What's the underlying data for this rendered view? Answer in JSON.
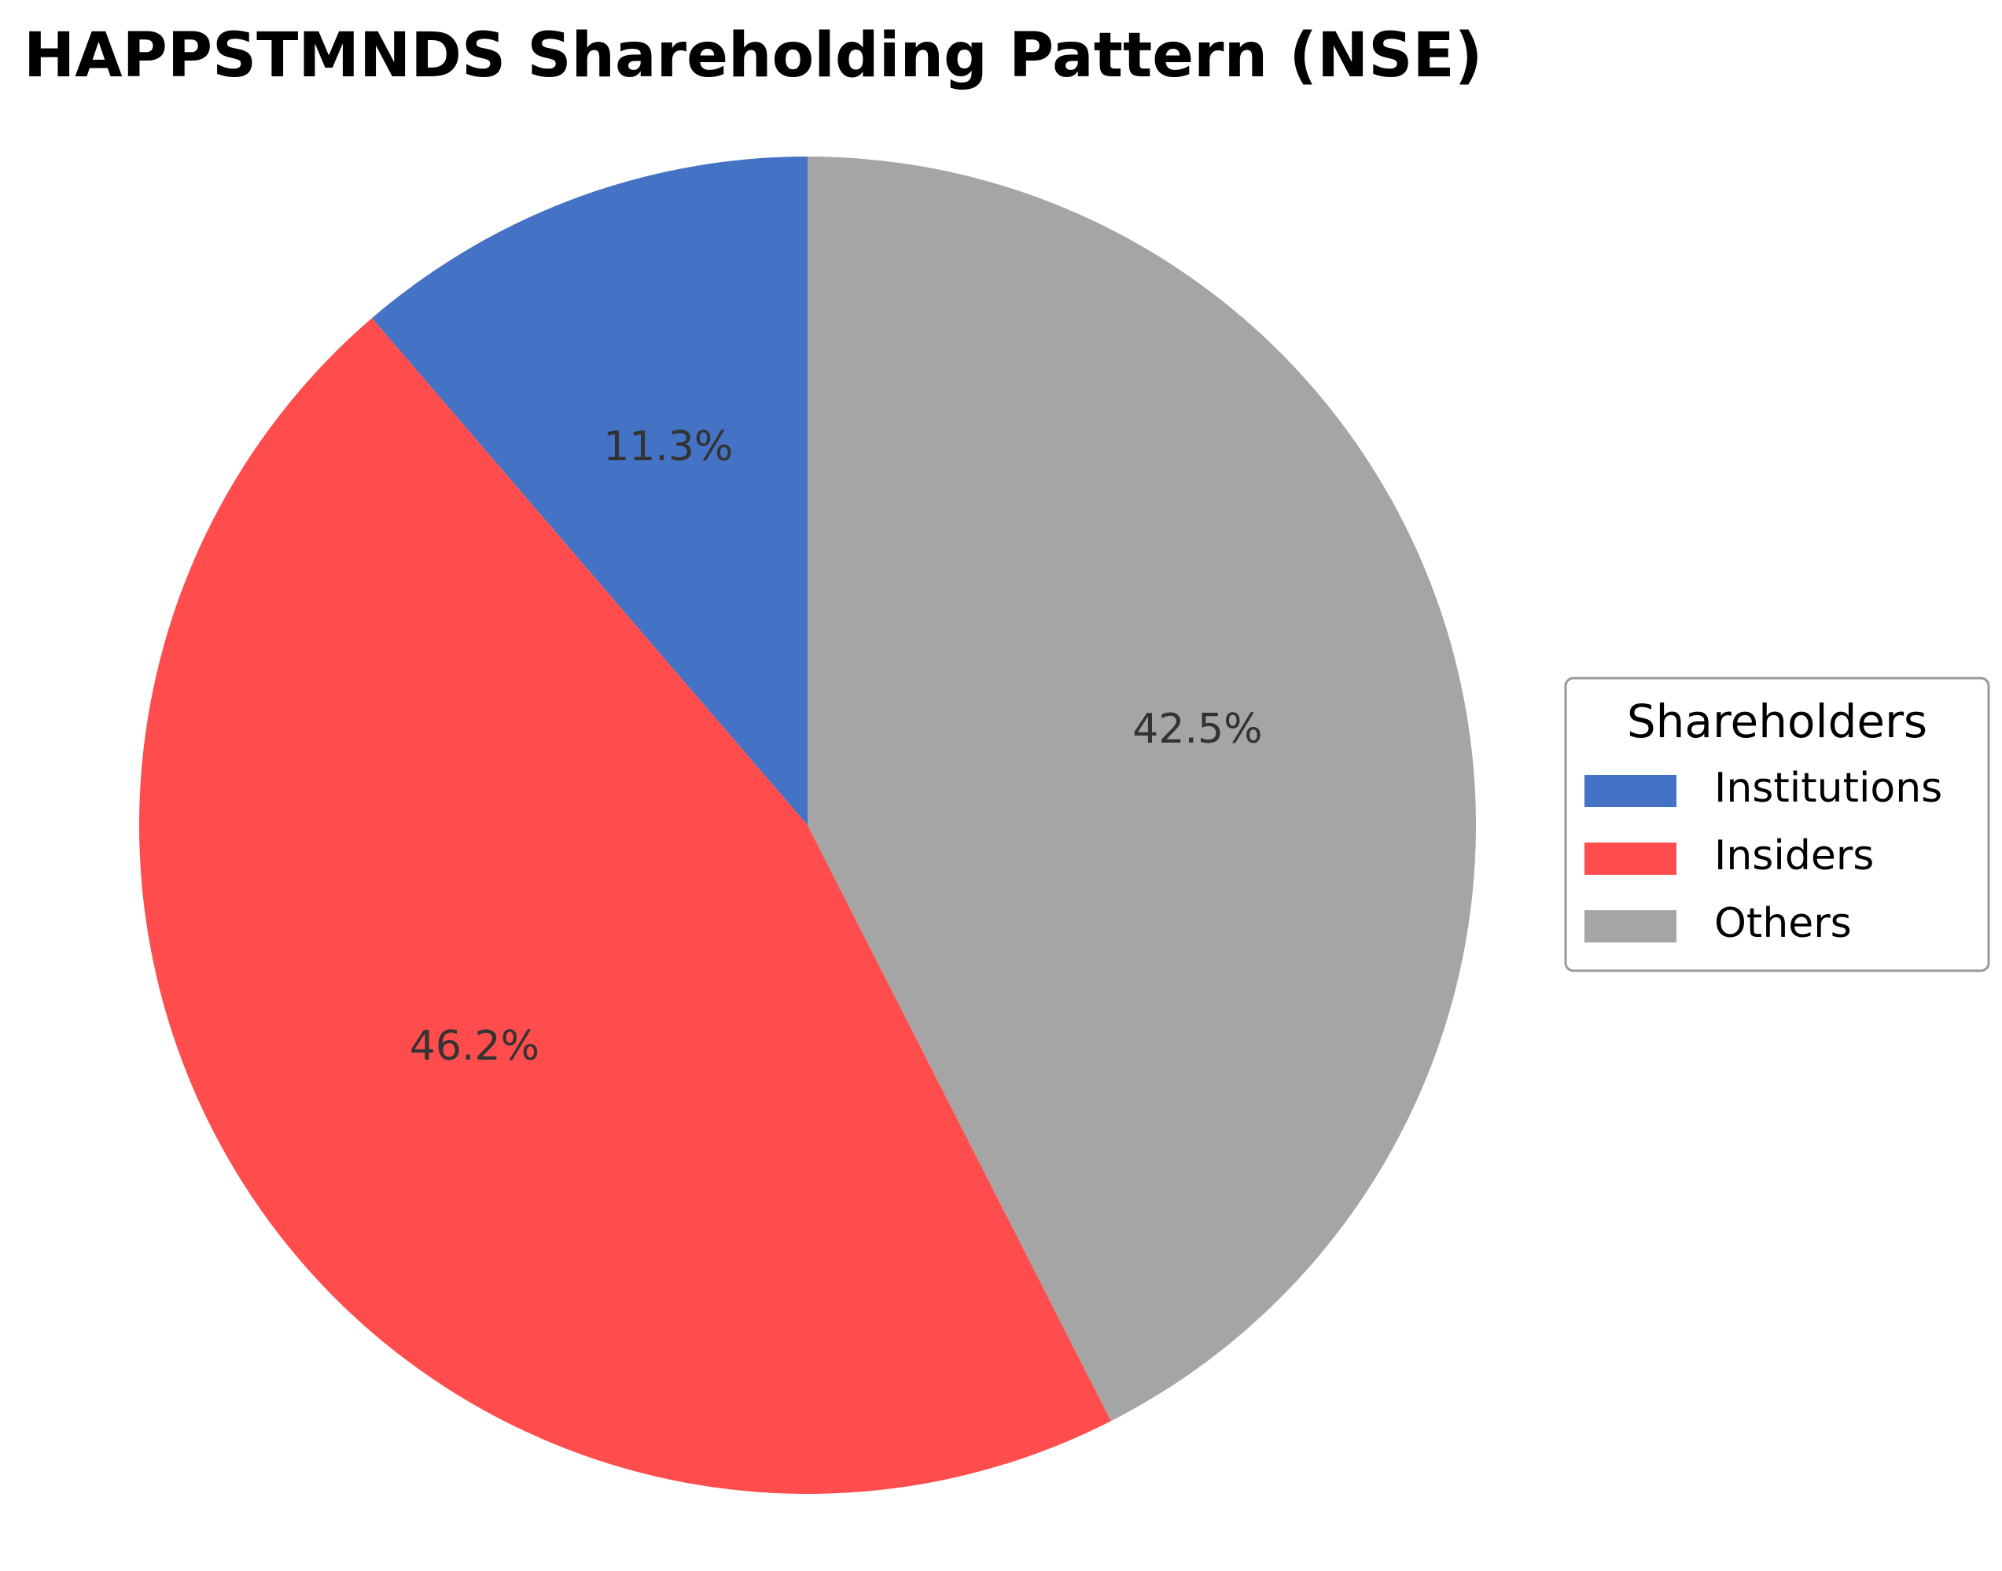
{
  "chart_data": {
    "type": "pie",
    "title": "HAPPSTMNDS Shareholding Pattern (NSE)",
    "legend": {
      "title": "Shareholders",
      "placement": "center-right"
    },
    "slices": [
      {
        "label": "Institutions",
        "value": 11.3,
        "display": "11.3%",
        "color": "#4472C4"
      },
      {
        "label": "Insiders",
        "value": 46.2,
        "display": "46.2%",
        "color": "#FF4C4C"
      },
      {
        "label": "Others",
        "value": 42.5,
        "display": "42.5%",
        "color": "#A5A5A5"
      }
    ],
    "start_angle_deg": 90,
    "direction": "counterclockwise"
  }
}
